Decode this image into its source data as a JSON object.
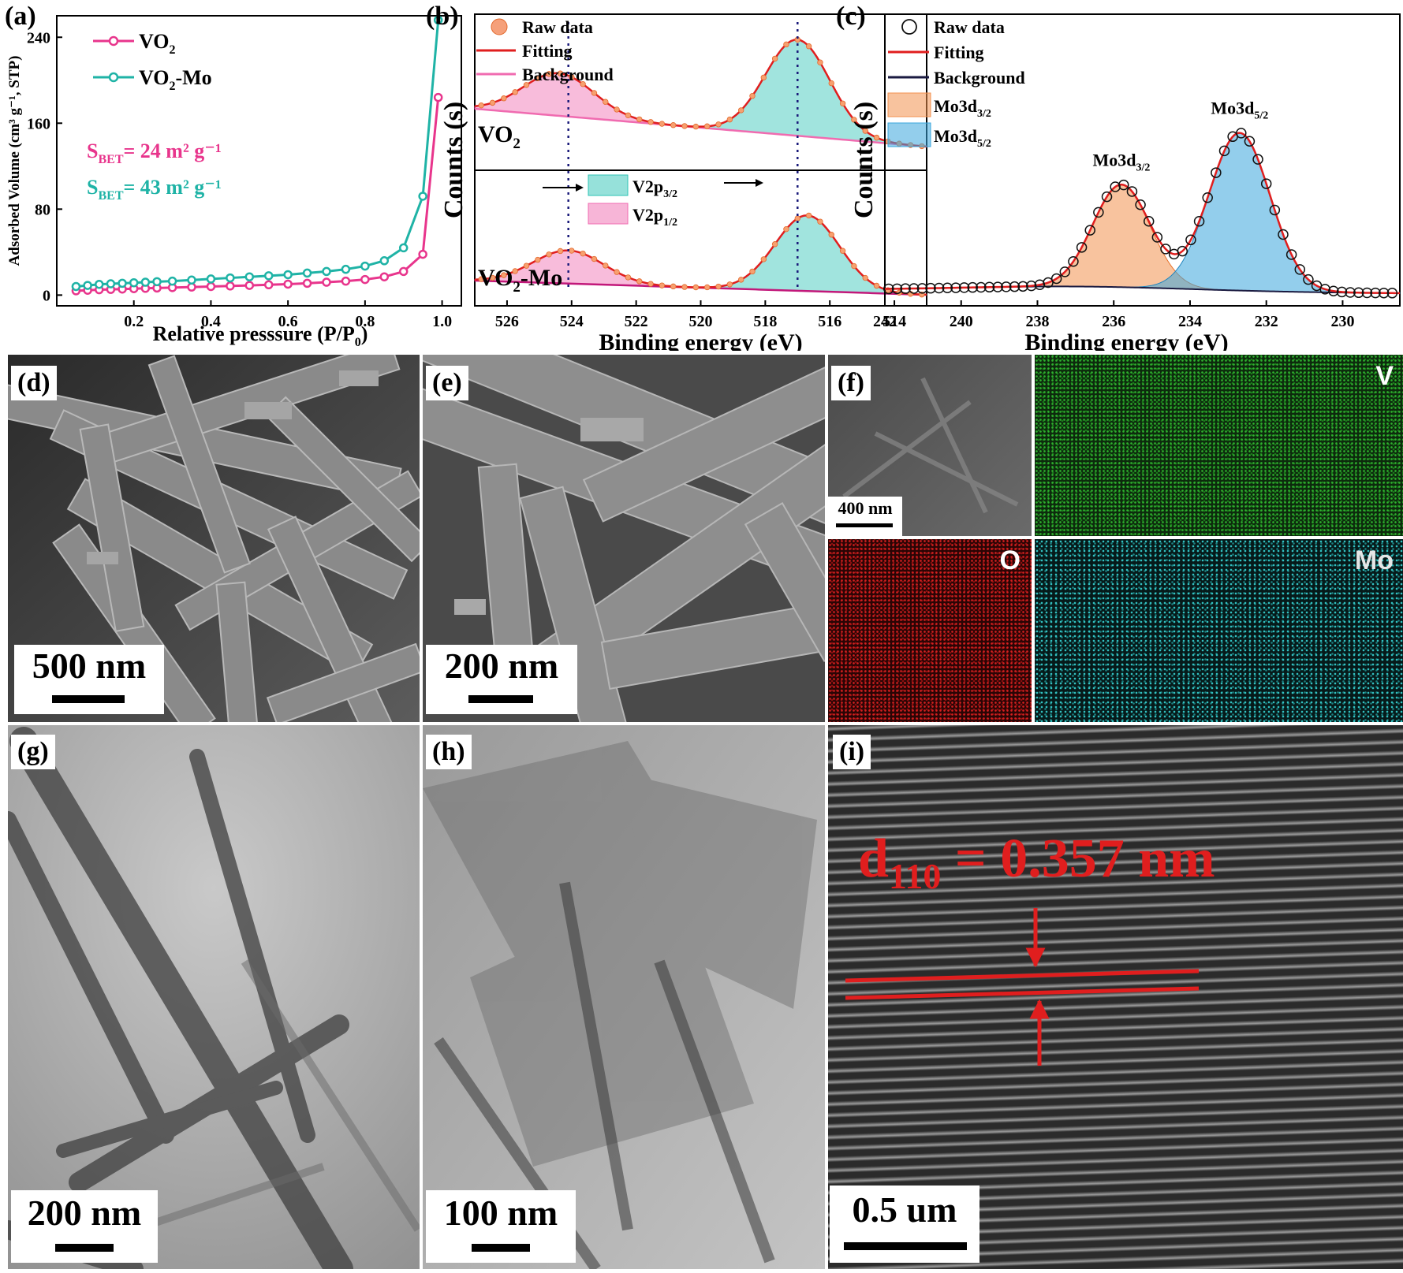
{
  "panels": {
    "a": {
      "label": "(a)"
    },
    "b": {
      "label": "(b)"
    },
    "c": {
      "label": "(c)"
    },
    "d": {
      "label": "(d)",
      "scale": "500 nm"
    },
    "e": {
      "label": "(e)",
      "scale": "200 nm"
    },
    "f": {
      "label": "(f)",
      "scale": "400 nm",
      "maps": [
        "V",
        "O",
        "Mo"
      ],
      "map_colors": [
        "#1e9a1e",
        "#c41818",
        "#2ab3b3"
      ]
    },
    "g": {
      "label": "(g)",
      "scale": "200 nm"
    },
    "h": {
      "label": "(h)",
      "scale": "100 nm"
    },
    "i": {
      "label": "(i)",
      "scale": "0.5 um",
      "annotation_main": "d",
      "annotation_sub": "110",
      "annotation_tail": " = 0.357 nm"
    }
  },
  "chart_data": [
    {
      "id": "a",
      "type": "line",
      "xlabel_main": "Relative presssure (P/P",
      "xlabel_sub": "0",
      "xlabel_end": ")",
      "ylabel": "Adsorbed Volume (cm³ g⁻¹, STP)",
      "xlim": [
        0.0,
        1.05
      ],
      "ylim": [
        -10,
        260
      ],
      "xticks": [
        "0.2",
        "0.4",
        "0.6",
        "0.8",
        "1.0"
      ],
      "xtick_values": [
        0.2,
        0.4,
        0.6,
        0.8,
        1.0
      ],
      "yticks": [
        "0",
        "80",
        "160",
        "240"
      ],
      "ytick_values": [
        0,
        80,
        160,
        240
      ],
      "legend": [
        {
          "name_main": "VO",
          "name_sub": "2",
          "name_end": "",
          "color": "#e8358c"
        },
        {
          "name_main": "VO",
          "name_sub": "2",
          "name_end": "-Mo",
          "color": "#1fb3a6"
        }
      ],
      "annotations": [
        {
          "main": "S",
          "sub": "BET",
          "text": "= 24 m² g⁻¹",
          "color": "#e8358c"
        },
        {
          "main": "S",
          "sub": "BET",
          "text": "= 43 m² g⁻¹",
          "color": "#1fb3a6"
        }
      ],
      "series": [
        {
          "name": "VO2",
          "color": "#e8358c",
          "x": [
            0.05,
            0.08,
            0.11,
            0.14,
            0.17,
            0.2,
            0.23,
            0.26,
            0.3,
            0.35,
            0.4,
            0.45,
            0.5,
            0.55,
            0.6,
            0.65,
            0.7,
            0.75,
            0.8,
            0.85,
            0.9,
            0.95,
            0.99
          ],
          "y": [
            4,
            4.5,
            5,
            5.3,
            5.6,
            6,
            6.3,
            6.6,
            7,
            7.5,
            8,
            8.5,
            9,
            9.6,
            10.2,
            11,
            12,
            13,
            14.5,
            17,
            22,
            38,
            184
          ]
        },
        {
          "name": "VO2-Mo",
          "color": "#1fb3a6",
          "x": [
            0.05,
            0.08,
            0.11,
            0.14,
            0.17,
            0.2,
            0.23,
            0.26,
            0.3,
            0.35,
            0.4,
            0.45,
            0.5,
            0.55,
            0.6,
            0.65,
            0.7,
            0.75,
            0.8,
            0.85,
            0.9,
            0.95,
            0.99
          ],
          "y": [
            8,
            9,
            10,
            10.5,
            11,
            11.5,
            12,
            12.5,
            13,
            14,
            15,
            16,
            17,
            18,
            19,
            20.5,
            22,
            24,
            27,
            32,
            44,
            92,
            256
          ]
        }
      ]
    },
    {
      "id": "b",
      "type": "area",
      "xlabel": "Binding energy (eV)",
      "ylabel": "Counts (s)",
      "xlim": [
        527,
        513
      ],
      "xticks": [
        "526",
        "524",
        "522",
        "520",
        "518",
        "516",
        "514"
      ],
      "xtick_values": [
        526,
        524,
        522,
        520,
        518,
        516,
        514
      ],
      "legend": [
        "Raw data",
        "Fitting",
        "Background"
      ],
      "peak_legend": [
        {
          "main": "V2p",
          "sub": "3/2",
          "color": "#2ec4b6"
        },
        {
          "main": "V2p",
          "sub": "1/2",
          "color": "#f06bb0"
        }
      ],
      "subplots": [
        {
          "name_main": "VO",
          "name_sub": "2",
          "name_end": "",
          "peaks_eV": [
            524.4,
            517.0
          ]
        },
        {
          "name_main": "VO",
          "name_sub": "2",
          "name_end": "-Mo",
          "peaks_eV": [
            524.1,
            516.7
          ]
        }
      ],
      "reference_lines_eV": [
        524.1,
        517.0
      ]
    },
    {
      "id": "c",
      "type": "area",
      "xlabel": "Binding energy (eV)",
      "ylabel": "Counts (s)",
      "xlim": [
        242,
        228.5
      ],
      "xticks": [
        "242",
        "240",
        "238",
        "236",
        "234",
        "232",
        "230"
      ],
      "xtick_values": [
        242,
        240,
        238,
        236,
        234,
        232,
        230
      ],
      "legend": [
        "Raw data",
        "Fitting",
        "Background"
      ],
      "peak_legend": [
        {
          "main": "Mo3d",
          "sub": "3/2",
          "color": "#f3924f"
        },
        {
          "main": "Mo3d",
          "sub": "5/2",
          "color": "#3aa6dd"
        }
      ],
      "peaks": [
        {
          "main": "Mo3d",
          "sub": "3/2",
          "eV": 235.8
        },
        {
          "main": "Mo3d",
          "sub": "5/2",
          "eV": 232.7
        }
      ]
    }
  ]
}
